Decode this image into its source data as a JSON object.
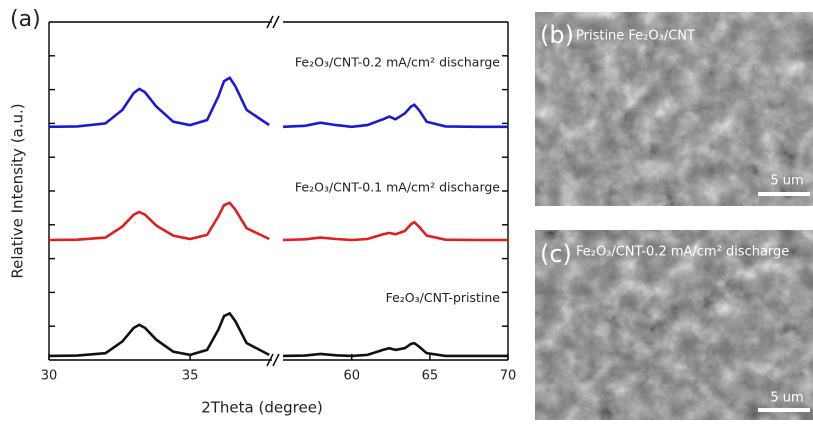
{
  "chart_data": {
    "type": "line",
    "panel_label": "(a)",
    "x_label": "2Theta (degree)",
    "y_label": "Relative Intensity (a.u.)",
    "xlim": [
      30,
      70
    ],
    "x_break": [
      37.9,
      55.6
    ],
    "xticks": [
      30,
      35,
      60,
      65,
      70
    ],
    "ylim": [
      0,
      10
    ],
    "yticks": [
      1,
      2,
      3,
      4,
      5,
      6,
      7,
      8,
      9
    ],
    "x": [
      30,
      31,
      32,
      32.6,
      33,
      33.2,
      33.4,
      33.8,
      34.4,
      35,
      35.6,
      36,
      36.2,
      36.4,
      36.6,
      37,
      37.8,
      null,
      55.6,
      57,
      58,
      59,
      60,
      61,
      62,
      62.4,
      62.8,
      63.4,
      63.8,
      64,
      64.3,
      64.8,
      66,
      68,
      70
    ],
    "series": [
      {
        "name": "Fe₂O₃/CNT-0.2 mA/cm² discharge",
        "color": "#1a1ad6",
        "values": [
          6.9,
          6.91,
          7.0,
          7.4,
          7.9,
          8.02,
          7.92,
          7.5,
          7.05,
          6.95,
          7.1,
          7.8,
          8.25,
          8.35,
          8.1,
          7.4,
          6.95,
          null,
          6.9,
          6.93,
          7.02,
          6.95,
          6.9,
          6.95,
          7.12,
          7.2,
          7.12,
          7.3,
          7.5,
          7.55,
          7.4,
          7.05,
          6.91,
          6.9,
          6.9
        ]
      },
      {
        "name": "Fe₂O₃/CNT-0.1 mA/cm² discharge",
        "color": "#e01f1f",
        "values": [
          3.55,
          3.56,
          3.62,
          3.95,
          4.3,
          4.38,
          4.3,
          3.98,
          3.68,
          3.58,
          3.7,
          4.25,
          4.58,
          4.65,
          4.45,
          3.9,
          3.58,
          null,
          3.55,
          3.57,
          3.62,
          3.58,
          3.55,
          3.58,
          3.72,
          3.76,
          3.72,
          3.82,
          4.02,
          4.08,
          3.95,
          3.68,
          3.56,
          3.55,
          3.55
        ]
      },
      {
        "name": "Fe₂O₃/CNT-pristine",
        "color": "#111111",
        "values": [
          0.12,
          0.13,
          0.2,
          0.55,
          0.95,
          1.04,
          0.95,
          0.6,
          0.25,
          0.15,
          0.3,
          0.9,
          1.3,
          1.38,
          1.15,
          0.5,
          0.15,
          null,
          0.12,
          0.13,
          0.18,
          0.14,
          0.12,
          0.15,
          0.3,
          0.35,
          0.3,
          0.35,
          0.48,
          0.5,
          0.4,
          0.2,
          0.12,
          0.12,
          0.12
        ]
      }
    ]
  },
  "images": [
    {
      "label": "(b)",
      "caption": "Pristine Fe₂O₃/CNT",
      "scale_bar": "5 um"
    },
    {
      "label": "(c)",
      "caption": "Fe₂O₃/CNT-0.2 mA/cm² discharge",
      "scale_bar": "5 um"
    }
  ]
}
